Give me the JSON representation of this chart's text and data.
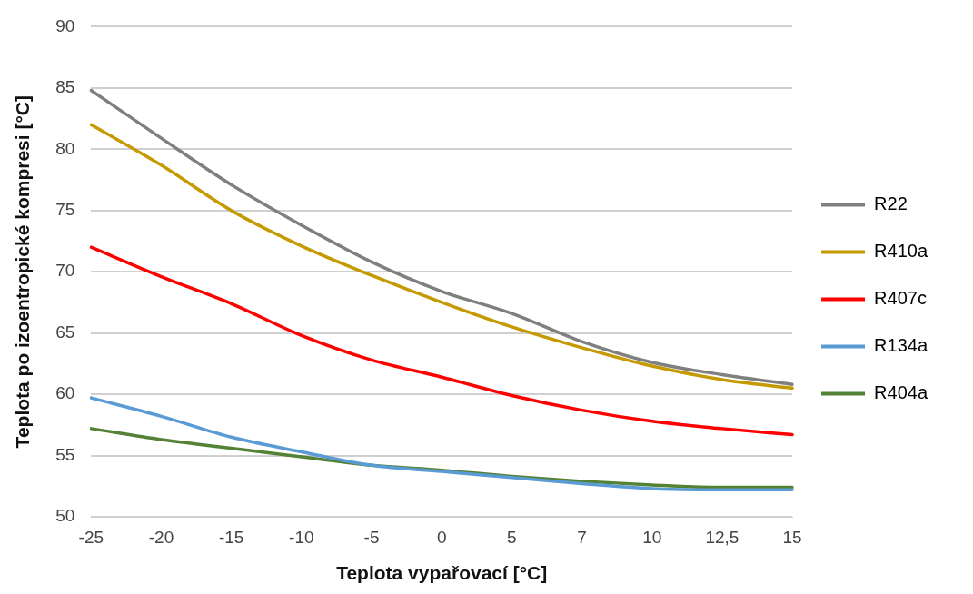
{
  "chart_data": {
    "type": "line",
    "xlabel": "Teplota vypařovací [°C]",
    "ylabel": "Teplota po izoentropické kompresi [°C]",
    "categories": [
      "-25",
      "-20",
      "-15",
      "-10",
      "-5",
      "0",
      "5",
      "7",
      "10",
      "12,5",
      "15"
    ],
    "series": [
      {
        "name": "R22",
        "color": "#7f7f7f",
        "values": [
          84.8,
          80.9,
          77.1,
          73.8,
          70.8,
          68.4,
          66.6,
          64.3,
          62.6,
          61.6,
          60.8
        ]
      },
      {
        "name": "R410a",
        "color": "#c49a00",
        "values": [
          82.0,
          78.7,
          75.0,
          72.1,
          69.7,
          67.5,
          65.5,
          63.8,
          62.3,
          61.2,
          60.5
        ]
      },
      {
        "name": "R407c",
        "color": "#ff0000",
        "values": [
          72.0,
          69.6,
          67.4,
          64.8,
          62.8,
          61.4,
          59.9,
          58.7,
          57.8,
          57.2,
          56.7
        ]
      },
      {
        "name": "R134a",
        "color": "#5b9bd5",
        "values": [
          59.7,
          58.2,
          56.5,
          55.3,
          54.2,
          53.7,
          53.2,
          52.7,
          52.3,
          52.2,
          52.2
        ]
      },
      {
        "name": "R404a",
        "color": "#548235",
        "values": [
          57.2,
          56.3,
          55.6,
          54.9,
          54.2,
          53.8,
          53.3,
          52.9,
          52.6,
          52.4,
          52.4
        ]
      }
    ],
    "ylim": [
      50,
      90
    ],
    "yticks": [
      50,
      55,
      60,
      65,
      70,
      75,
      80,
      85,
      90
    ],
    "grid": "y",
    "legend": "right",
    "marker": "none",
    "line_style": "solid"
  }
}
